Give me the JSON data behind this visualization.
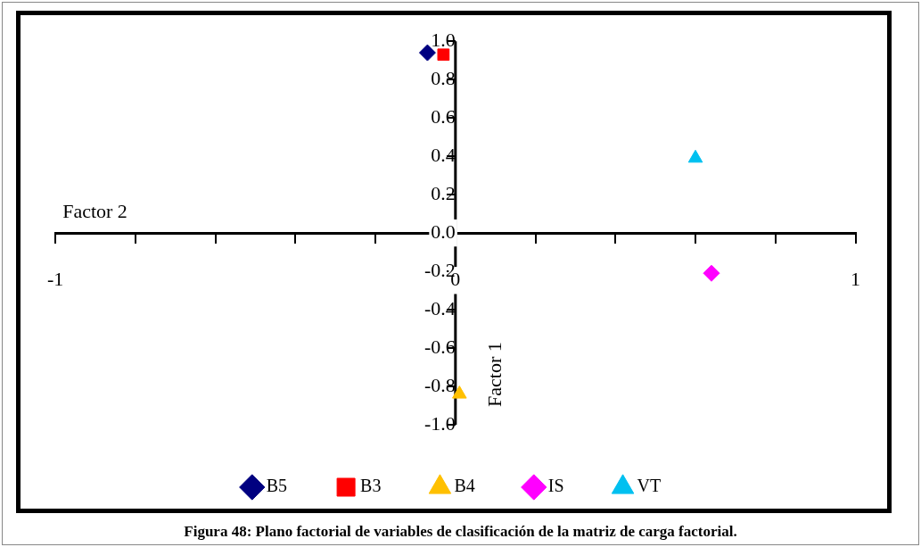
{
  "chart_data": {
    "type": "scatter",
    "xlabel": "Factor 2",
    "ylabel": "Factor 1",
    "annotations": [
      "Figura  48: Plano factorial de variables de clasificación de la matriz de carga factorial."
    ],
    "xlim": [
      -1,
      1
    ],
    "ylim": [
      -1,
      1
    ],
    "xticks": [
      -1,
      {
        "value": -0.8,
        "label": null
      },
      {
        "value": -0.6,
        "label": null
      },
      {
        "value": -0.4,
        "label": null
      },
      {
        "value": -0.2,
        "label": null
      },
      0,
      {
        "value": 0.2,
        "label": null
      },
      {
        "value": 0.4,
        "label": null
      },
      {
        "value": 0.6,
        "label": null
      },
      {
        "value": 0.8,
        "label": null
      },
      1
    ],
    "yticks": [
      {
        "value": -1,
        "label": "-1.0"
      },
      -0.8,
      -0.6,
      -0.4,
      -0.2,
      {
        "value": 0,
        "label": "0.0"
      },
      0.2,
      0.4,
      0.6,
      0.8,
      {
        "value": 1,
        "label": "1.0"
      }
    ],
    "legend": "bottom",
    "series": [
      {
        "name": "B5",
        "color": "#000080",
        "marker": "diamond",
        "x": [
          -0.07
        ],
        "values": [
          0.94
        ]
      },
      {
        "name": "B3",
        "color": "#ff0000",
        "marker": "square",
        "x": [
          -0.03
        ],
        "values": [
          0.93
        ]
      },
      {
        "name": "B4",
        "color": "#ffc000",
        "marker": "triangle",
        "x": [
          0.01
        ],
        "values": [
          -0.84
        ]
      },
      {
        "name": "IS",
        "color": "#ff00ff",
        "marker": "diamond",
        "x": [
          0.64
        ],
        "values": [
          -0.21
        ]
      },
      {
        "name": "VT",
        "color": "#00c0f0",
        "marker": "triangle",
        "x": [
          0.6
        ],
        "values": [
          0.39
        ]
      }
    ]
  }
}
